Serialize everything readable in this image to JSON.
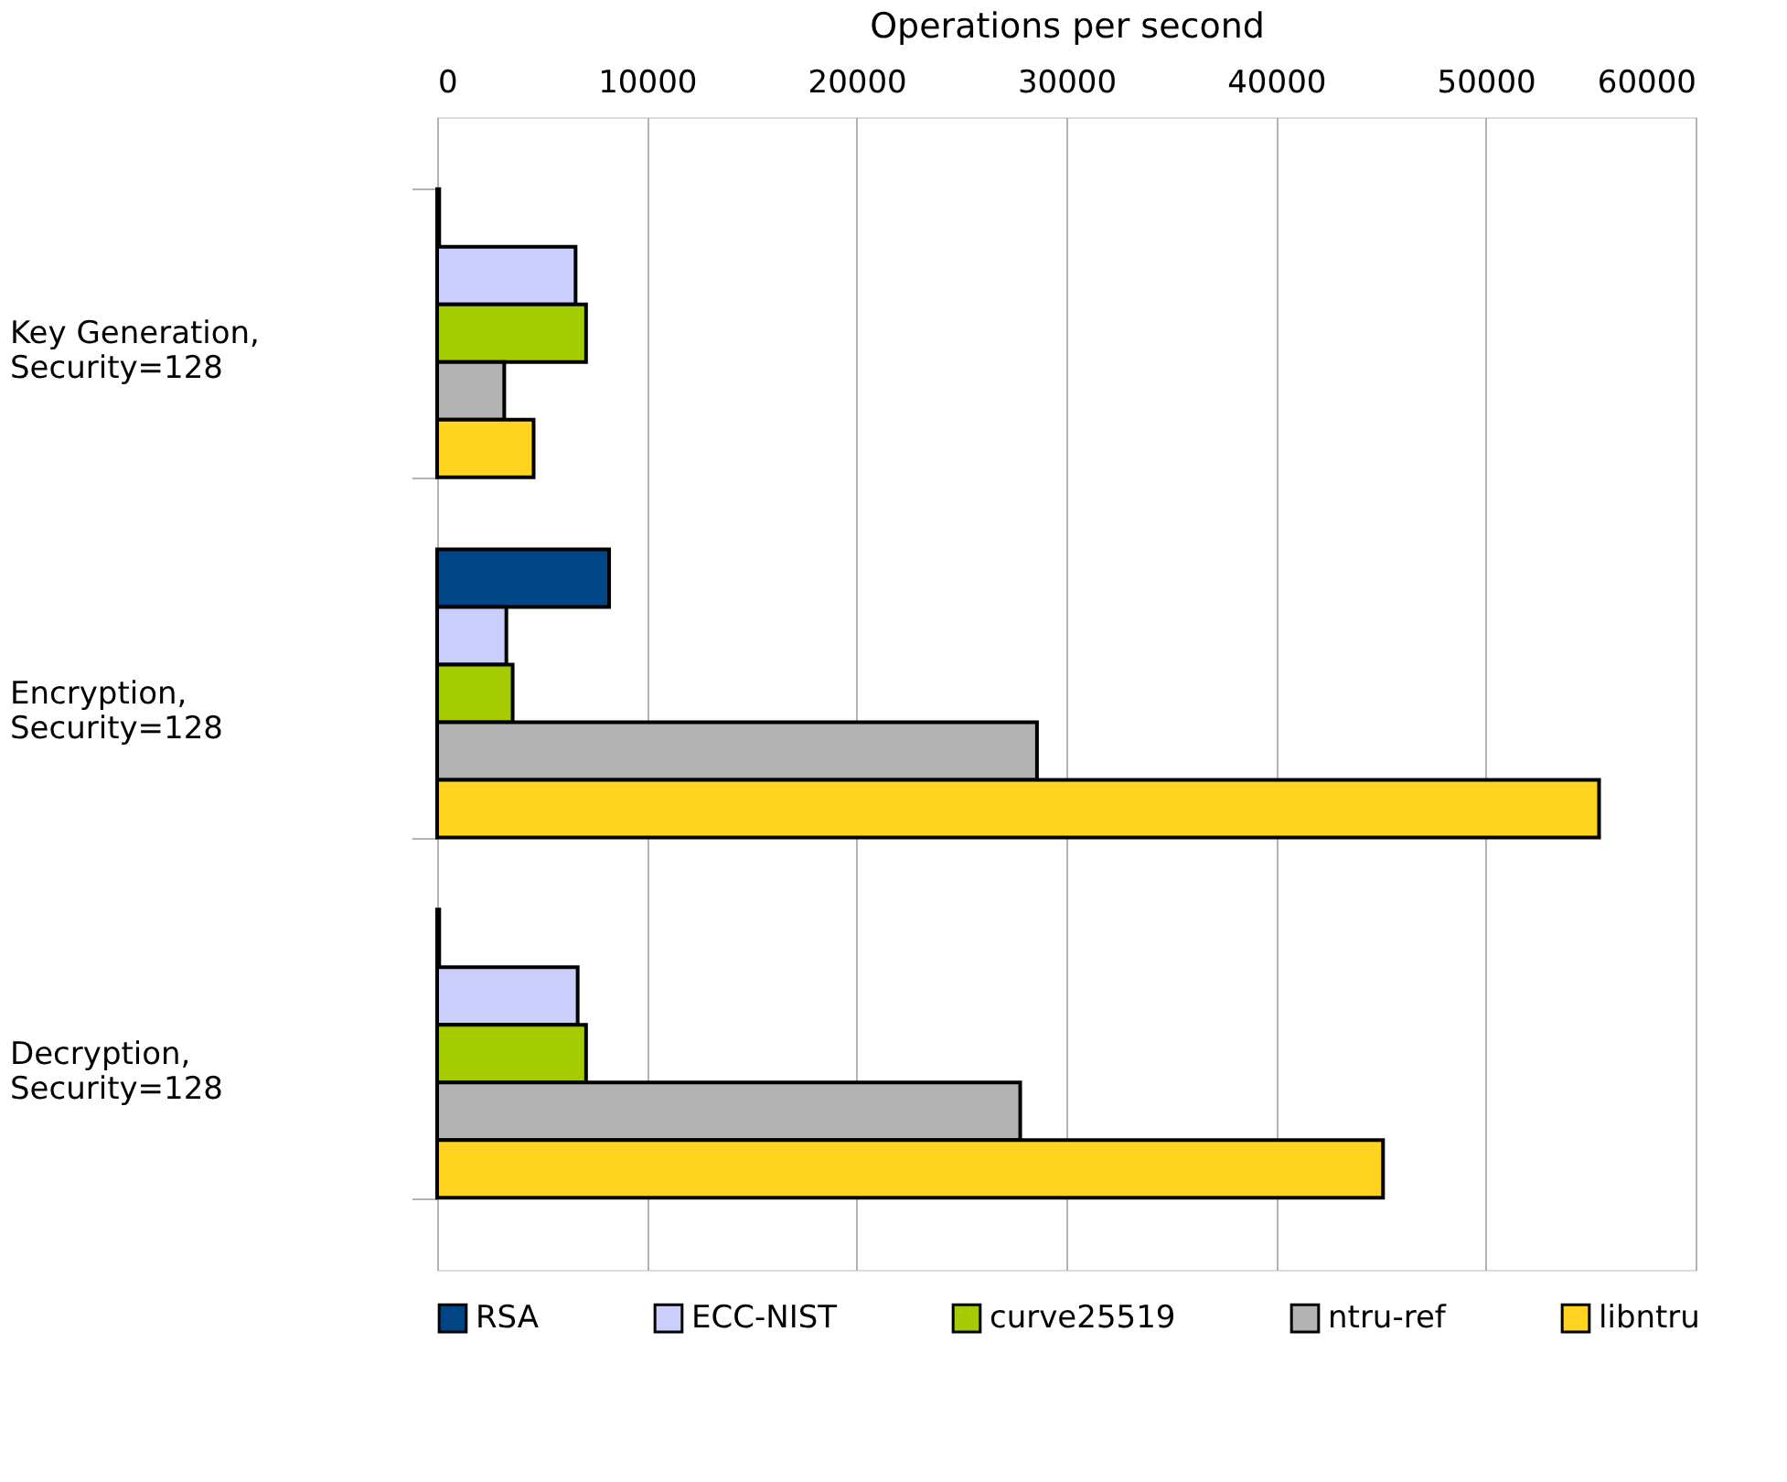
{
  "chart_data": {
    "type": "bar",
    "orientation": "horizontal",
    "xlabel": "Operations per second",
    "categories": [
      "Key Generation, Security=128",
      "Encryption, Security=128",
      "Decryption, Security=128"
    ],
    "series": [
      {
        "name": "RSA",
        "color": "#004586",
        "values": [
          100,
          8200,
          100
        ]
      },
      {
        "name": "ECC-NIST",
        "color": "#c9cffa",
        "values": [
          6600,
          3300,
          6700
        ]
      },
      {
        "name": "curve25519",
        "color": "#a5cc00",
        "values": [
          7100,
          3600,
          7100
        ]
      },
      {
        "name": "ntru-ref",
        "color": "#b3b3b3",
        "values": [
          3200,
          28600,
          27800
        ]
      },
      {
        "name": "libntru",
        "color": "#ffd320",
        "values": [
          4600,
          55400,
          45100
        ]
      }
    ],
    "xlim": [
      0,
      60000
    ],
    "xticks": [
      0,
      10000,
      20000,
      30000,
      40000,
      50000,
      60000
    ],
    "grid": "x",
    "legend": "bottom"
  }
}
